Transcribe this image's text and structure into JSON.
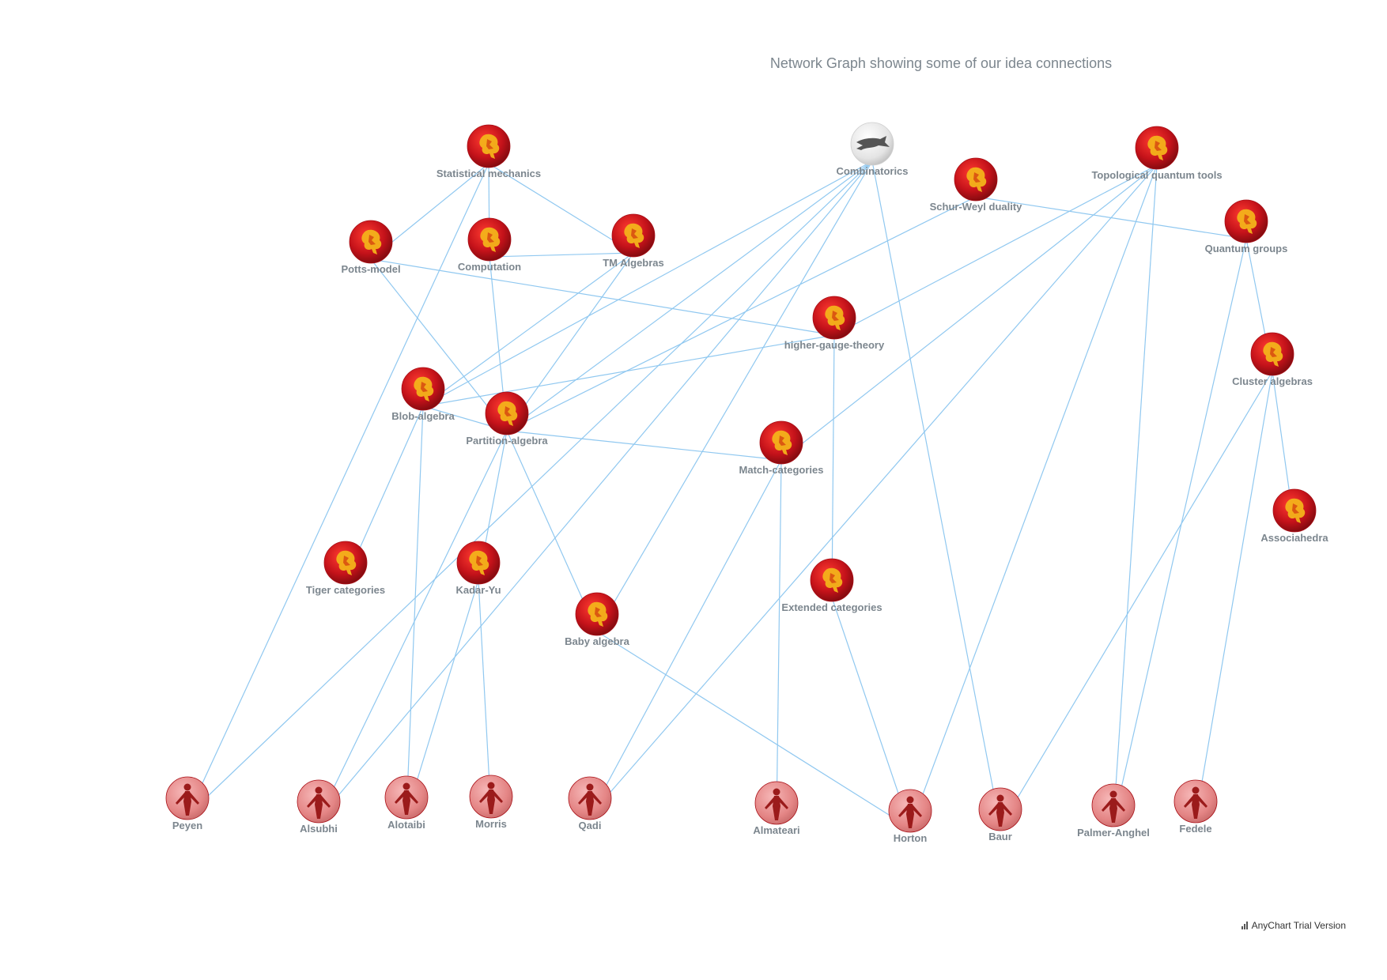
{
  "title": "Network Graph showing some of our idea connections",
  "credits": "AnyChart Trial Version",
  "colors": {
    "edge": "#90c8f0",
    "label": "#7c868e",
    "idea": "#c4121a",
    "person": "#e88a8a"
  },
  "icons": {
    "idea": "lion-crest-icon",
    "person": "person-icon",
    "special": "wolf-icon"
  },
  "nodes": [
    {
      "id": "Statistical mechanics",
      "type": "idea"
    },
    {
      "id": "Combinatorics",
      "type": "special"
    },
    {
      "id": "Topological quantum tools",
      "type": "idea"
    },
    {
      "id": "Schur-Weyl duality",
      "type": "idea"
    },
    {
      "id": "Potts-model",
      "type": "idea"
    },
    {
      "id": "Computation",
      "type": "idea"
    },
    {
      "id": "TM Algebras",
      "type": "idea"
    },
    {
      "id": "Quantum groups",
      "type": "idea"
    },
    {
      "id": "higher-gauge-theory",
      "type": "idea"
    },
    {
      "id": "Cluster algebras",
      "type": "idea"
    },
    {
      "id": "Blob-algebra",
      "type": "idea"
    },
    {
      "id": "Partition-algebra",
      "type": "idea"
    },
    {
      "id": "Match-categories",
      "type": "idea"
    },
    {
      "id": "Associahedra",
      "type": "idea"
    },
    {
      "id": "Tiger categories",
      "type": "idea"
    },
    {
      "id": "Kadar-Yu",
      "type": "idea"
    },
    {
      "id": "Extended categories",
      "type": "idea"
    },
    {
      "id": "Baby algebra",
      "type": "idea"
    },
    {
      "id": "Peyen",
      "type": "person"
    },
    {
      "id": "Alsubhi",
      "type": "person"
    },
    {
      "id": "Alotaibi",
      "type": "person"
    },
    {
      "id": "Morris",
      "type": "person"
    },
    {
      "id": "Qadi",
      "type": "person"
    },
    {
      "id": "Almateari",
      "type": "person"
    },
    {
      "id": "Horton",
      "type": "person"
    },
    {
      "id": "Baur",
      "type": "person"
    },
    {
      "id": "Palmer-Anghel",
      "type": "person"
    },
    {
      "id": "Fedele",
      "type": "person"
    }
  ],
  "edges": [
    [
      "Statistical mechanics",
      "Potts-model"
    ],
    [
      "Statistical mechanics",
      "Computation"
    ],
    [
      "Statistical mechanics",
      "TM Algebras"
    ],
    [
      "Statistical mechanics",
      "Peyen"
    ],
    [
      "Computation",
      "TM Algebras"
    ],
    [
      "Computation",
      "Partition-algebra"
    ],
    [
      "Potts-model",
      "higher-gauge-theory"
    ],
    [
      "Potts-model",
      "Partition-algebra"
    ],
    [
      "TM Algebras",
      "Blob-algebra"
    ],
    [
      "TM Algebras",
      "Partition-algebra"
    ],
    [
      "Combinatorics",
      "Blob-algebra"
    ],
    [
      "Combinatorics",
      "Partition-algebra"
    ],
    [
      "Combinatorics",
      "Peyen"
    ],
    [
      "Combinatorics",
      "Alsubhi"
    ],
    [
      "Combinatorics",
      "Baby algebra"
    ],
    [
      "Combinatorics",
      "Baur"
    ],
    [
      "Schur-Weyl duality",
      "Partition-algebra"
    ],
    [
      "Schur-Weyl duality",
      "Quantum groups"
    ],
    [
      "Topological quantum tools",
      "higher-gauge-theory"
    ],
    [
      "Topological quantum tools",
      "Match-categories"
    ],
    [
      "Topological quantum tools",
      "Qadi"
    ],
    [
      "Topological quantum tools",
      "Horton"
    ],
    [
      "Topological quantum tools",
      "Palmer-Anghel"
    ],
    [
      "Quantum groups",
      "Cluster algebras"
    ],
    [
      "Quantum groups",
      "Palmer-Anghel"
    ],
    [
      "Cluster algebras",
      "Associahedra"
    ],
    [
      "Cluster algebras",
      "Baur"
    ],
    [
      "Cluster algebras",
      "Fedele"
    ],
    [
      "higher-gauge-theory",
      "Blob-algebra"
    ],
    [
      "higher-gauge-theory",
      "Extended categories"
    ],
    [
      "Blob-algebra",
      "Partition-algebra"
    ],
    [
      "Blob-algebra",
      "Tiger categories"
    ],
    [
      "Blob-algebra",
      "Alotaibi"
    ],
    [
      "Partition-algebra",
      "Match-categories"
    ],
    [
      "Partition-algebra",
      "Baby algebra"
    ],
    [
      "Partition-algebra",
      "Alsubhi"
    ],
    [
      "Partition-algebra",
      "Kadar-Yu"
    ],
    [
      "Kadar-Yu",
      "Alotaibi"
    ],
    [
      "Kadar-Yu",
      "Morris"
    ],
    [
      "Match-categories",
      "Qadi"
    ],
    [
      "Match-categories",
      "Almateari"
    ],
    [
      "Extended categories",
      "Horton"
    ],
    [
      "Baby algebra",
      "Horton"
    ]
  ]
}
